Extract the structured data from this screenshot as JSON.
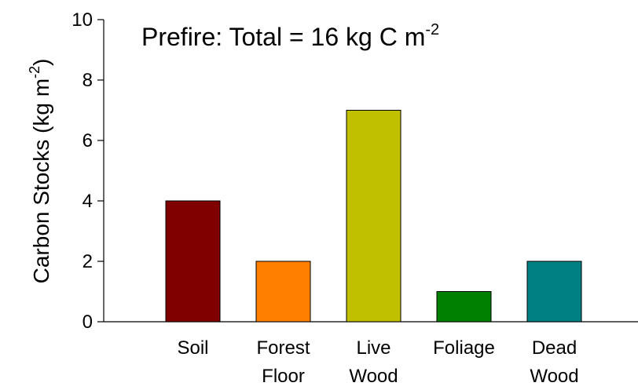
{
  "chart_data": {
    "type": "bar",
    "title": {
      "text": "Prefire: Total = 16 kg C m",
      "superscript": "-2"
    },
    "y_label": {
      "text": "Carbon Stocks (kg m",
      "superscript": "-2",
      "suffix": ")"
    },
    "categories": [
      [
        "Soil"
      ],
      [
        "Forest",
        "Floor"
      ],
      [
        "Live",
        "Wood"
      ],
      [
        "Foliage"
      ],
      [
        "Dead",
        "Wood"
      ]
    ],
    "values": [
      4,
      2,
      7,
      1,
      2
    ],
    "colors": [
      "#800000",
      "#ff8000",
      "#c0c000",
      "#008000",
      "#008080"
    ],
    "ylim": [
      0,
      10
    ],
    "yticks": [
      0,
      2,
      4,
      6,
      8,
      10
    ],
    "grid": false
  }
}
